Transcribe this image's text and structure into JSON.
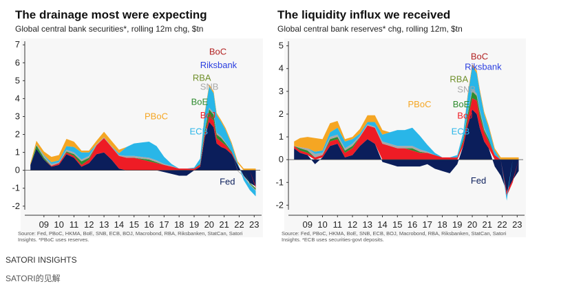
{
  "caption_primary": "SATORI INSIGHTS",
  "caption_secondary": "SATORI的见解",
  "colors": {
    "Fed": "#0b1e5b",
    "ECB": "#29b6e8",
    "BoJ": "#ee1c25",
    "BoE": "#2e8b2e",
    "SNB": "#a8a8a8",
    "RBA": "#6f8f2a",
    "Riksbank": "#2b3fe0",
    "BoC": "#b22222",
    "PBoC": "#f5a623",
    "Other": "#8fbc3f"
  },
  "chart_data": [
    {
      "type": "area",
      "title": "The drainage most were expecting",
      "subtitle": "Global central bank securities*, rolling 12m chg, $tn",
      "source": "Source: Fed, PBoC, HKMA, BoE, SNB, ECB, BOJ, Macrobond, RBA, Riksbanken, StatCan, Satori",
      "source2": "Insights. *PBoC uses reserves.",
      "ylim": [
        -2.2,
        7.2
      ],
      "yticks": [
        -2,
        -1,
        0,
        1,
        2,
        3,
        4,
        5,
        6,
        7
      ],
      "xlim": [
        2008.5,
        2023.9
      ],
      "xticks": [
        "09",
        "10",
        "11",
        "12",
        "13",
        "14",
        "15",
        "16",
        "17",
        "18",
        "19",
        "20",
        "21",
        "22",
        "23"
      ],
      "x": [
        2008.6,
        2009.0,
        2009.5,
        2010.0,
        2010.5,
        2011.0,
        2011.5,
        2012.0,
        2012.5,
        2013.0,
        2013.5,
        2014.0,
        2014.5,
        2015.0,
        2015.5,
        2016.0,
        2016.5,
        2017.0,
        2017.5,
        2018.0,
        2018.5,
        2019.0,
        2019.5,
        2019.9,
        2020.2,
        2020.5,
        2020.8,
        2021.0,
        2021.3,
        2021.6,
        2022.0,
        2022.4,
        2022.8,
        2023.2,
        2023.6
      ],
      "series": [
        {
          "name": "Fed",
          "values": [
            0.3,
            1.2,
            0.6,
            0.2,
            0.3,
            0.9,
            0.7,
            0.2,
            0.4,
            0.9,
            1.0,
            0.6,
            0.1,
            0.0,
            0.0,
            0.0,
            0.0,
            0.0,
            -0.1,
            -0.2,
            -0.3,
            -0.3,
            0.0,
            0.2,
            1.8,
            2.7,
            2.4,
            1.5,
            1.3,
            1.2,
            0.9,
            0.3,
            -0.3,
            -0.7,
            -0.9
          ]
        },
        {
          "name": "BoJ",
          "values": [
            0.0,
            0.0,
            0.0,
            0.05,
            0.1,
            0.1,
            0.1,
            0.1,
            0.2,
            0.5,
            0.8,
            0.7,
            0.7,
            0.7,
            0.7,
            0.6,
            0.5,
            0.4,
            0.3,
            0.2,
            0.1,
            0.1,
            0.1,
            0.1,
            0.2,
            0.3,
            0.4,
            0.3,
            0.3,
            0.2,
            0.1,
            0.0,
            0.0,
            0.0,
            -0.1
          ]
        },
        {
          "name": "BoE",
          "values": [
            0.0,
            0.2,
            0.1,
            0.0,
            0.0,
            0.05,
            0.1,
            0.2,
            0.1,
            0.0,
            0.0,
            0.0,
            0.0,
            0.0,
            0.0,
            0.05,
            0.1,
            0.05,
            0.0,
            0.0,
            0.0,
            0.0,
            0.0,
            0.05,
            0.2,
            0.4,
            0.3,
            0.2,
            0.2,
            0.1,
            0.05,
            0.0,
            0.0,
            -0.05,
            -0.1
          ]
        },
        {
          "name": "SNB",
          "values": [
            0.0,
            0.05,
            0.1,
            0.1,
            0.05,
            0.1,
            0.1,
            0.1,
            0.1,
            0.05,
            0.05,
            0.05,
            0.05,
            0.1,
            0.1,
            0.1,
            0.1,
            0.1,
            0.05,
            0.05,
            0.0,
            0.0,
            0.0,
            0.0,
            0.1,
            0.1,
            0.1,
            0.1,
            0.1,
            0.05,
            0.0,
            -0.05,
            -0.05,
            -0.05,
            -0.05
          ]
        },
        {
          "name": "ECB",
          "values": [
            0.0,
            0.0,
            0.05,
            0.1,
            0.1,
            0.2,
            0.3,
            0.4,
            0.2,
            0.0,
            0.0,
            0.0,
            0.1,
            0.5,
            0.7,
            0.8,
            0.9,
            0.8,
            0.4,
            0.1,
            0.0,
            0.0,
            0.05,
            0.3,
            0.8,
            1.2,
            1.1,
            1.0,
            0.8,
            0.7,
            0.4,
            0.1,
            -0.2,
            -0.3,
            -0.3
          ]
        },
        {
          "name": "PBoC",
          "values": [
            0.1,
            0.2,
            0.2,
            0.3,
            0.3,
            0.4,
            0.3,
            0.1,
            0.1,
            0.2,
            0.3,
            0.3,
            0.2,
            0.0,
            0.0,
            0.0,
            0.0,
            0.0,
            0.0,
            0.0,
            0.0,
            0.0,
            0.0,
            0.0,
            0.1,
            0.1,
            0.1,
            0.1,
            0.1,
            0.1,
            0.1,
            0.1,
            0.1,
            0.1,
            0.1
          ]
        }
      ],
      "annotations": [
        {
          "text": "BoC",
          "color": "#b22222",
          "x": 2020.5,
          "y": 6.45
        },
        {
          "text": "Riksbank",
          "color": "#2b3fe0",
          "x": 2019.9,
          "y": 5.7
        },
        {
          "text": "RBA",
          "color": "#6f8f2a",
          "x": 2019.4,
          "y": 5.0
        },
        {
          "text": "SNB",
          "color": "#a8a8a8",
          "x": 2019.9,
          "y": 4.5
        },
        {
          "text": "BoE",
          "color": "#2e8b2e",
          "x": 2019.3,
          "y": 3.65
        },
        {
          "text": "BoJ",
          "color": "#ee1c25",
          "x": 2019.9,
          "y": 2.9
        },
        {
          "text": "ECB",
          "color": "#29b6e8",
          "x": 2019.2,
          "y": 2.0
        },
        {
          "text": "PBoC",
          "color": "#f5a623",
          "x": 2016.2,
          "y": 2.85
        },
        {
          "text": "Fed",
          "color": "#0b1e5b",
          "x": 2021.2,
          "y": -0.8
        }
      ]
    },
    {
      "type": "area",
      "title": "The liquidity influx we received",
      "subtitle": "Global central bank reserves* chg, rolling 12m, $tn",
      "source": "Source: Fed, PBoC, HKMA, BoE, SNB, ECB, BOJ, Macrobond, RBA, Riksbanken, StatCan, Satori",
      "source2": "Insights. *ECB uses securities-govt deposits.",
      "ylim": [
        -2.2,
        5.2
      ],
      "yticks": [
        -2,
        -1,
        0,
        1,
        2,
        3,
        4,
        5
      ],
      "xlim": [
        2008.5,
        2023.9
      ],
      "xticks": [
        "09",
        "10",
        "11",
        "12",
        "13",
        "14",
        "15",
        "16",
        "17",
        "18",
        "19",
        "20",
        "21",
        "22",
        "23"
      ],
      "x": [
        2008.6,
        2009.0,
        2009.5,
        2010.0,
        2010.5,
        2011.0,
        2011.5,
        2012.0,
        2012.5,
        2013.0,
        2013.5,
        2014.0,
        2014.5,
        2015.0,
        2015.5,
        2016.0,
        2016.5,
        2017.0,
        2017.5,
        2018.0,
        2018.5,
        2019.0,
        2019.5,
        2019.9,
        2020.2,
        2020.5,
        2020.8,
        2021.0,
        2021.3,
        2021.6,
        2022.0,
        2022.4,
        2022.8,
        2023.2,
        2023.6
      ],
      "series": [
        {
          "name": "Fed",
          "values": [
            0.5,
            0.3,
            0.2,
            -0.2,
            0.1,
            0.6,
            0.7,
            0.1,
            0.2,
            0.6,
            0.9,
            0.7,
            -0.1,
            -0.2,
            -0.3,
            -0.3,
            -0.3,
            -0.3,
            -0.2,
            -0.4,
            -0.5,
            -0.6,
            -0.2,
            0.6,
            1.5,
            2.2,
            2.0,
            1.4,
            0.8,
            0.5,
            -0.3,
            -0.7,
            -1.4,
            -0.9,
            -0.5
          ]
        },
        {
          "name": "BoJ",
          "values": [
            0.1,
            0.1,
            0.1,
            0.1,
            0.1,
            0.2,
            0.2,
            0.2,
            0.3,
            0.4,
            0.6,
            0.7,
            0.7,
            0.6,
            0.5,
            0.5,
            0.4,
            0.3,
            0.3,
            0.2,
            0.1,
            0.1,
            0.1,
            0.2,
            0.3,
            0.5,
            0.6,
            0.5,
            0.4,
            0.3,
            0.2,
            0.0,
            -0.2,
            -0.1,
            0.0
          ]
        },
        {
          "name": "BoE",
          "values": [
            0.0,
            0.1,
            0.1,
            0.0,
            0.0,
            0.1,
            0.1,
            0.1,
            0.1,
            0.0,
            0.0,
            0.0,
            0.0,
            0.0,
            0.0,
            0.0,
            0.1,
            0.05,
            0.0,
            0.0,
            0.0,
            0.0,
            0.0,
            0.1,
            0.2,
            0.3,
            0.2,
            0.2,
            0.1,
            0.1,
            0.0,
            0.0,
            0.0,
            0.0,
            0.0
          ]
        },
        {
          "name": "SNB",
          "values": [
            0.0,
            0.05,
            0.1,
            0.15,
            0.1,
            0.1,
            0.1,
            0.1,
            0.1,
            0.05,
            0.05,
            0.05,
            0.1,
            0.1,
            0.1,
            0.1,
            0.1,
            0.1,
            0.05,
            0.0,
            0.0,
            0.0,
            0.0,
            0.0,
            0.1,
            0.1,
            0.1,
            0.1,
            0.1,
            0.0,
            0.0,
            0.0,
            0.0,
            0.0,
            0.0
          ]
        },
        {
          "name": "ECB",
          "values": [
            0.0,
            0.0,
            0.0,
            0.1,
            0.1,
            0.2,
            0.3,
            0.3,
            0.2,
            0.1,
            0.1,
            0.2,
            0.3,
            0.5,
            0.7,
            0.7,
            0.8,
            0.6,
            0.3,
            0.1,
            0.0,
            0.0,
            0.1,
            0.3,
            0.7,
            1.0,
            0.9,
            0.8,
            0.6,
            0.5,
            0.2,
            0.0,
            -0.2,
            0.0,
            0.0
          ]
        },
        {
          "name": "PBoC",
          "values": [
            0.2,
            0.4,
            0.5,
            0.6,
            0.5,
            0.4,
            0.3,
            0.1,
            0.1,
            0.2,
            0.3,
            0.3,
            0.2,
            0.0,
            0.0,
            0.0,
            0.0,
            0.0,
            0.0,
            0.0,
            0.0,
            0.0,
            0.0,
            0.0,
            0.1,
            0.1,
            0.1,
            0.1,
            0.1,
            0.1,
            0.1,
            0.1,
            0.1,
            0.1,
            0.1
          ]
        }
      ],
      "annotations": [
        {
          "text": "BoC",
          "color": "#b22222",
          "x": 2020.4,
          "y": 4.4
        },
        {
          "text": "Riksbank",
          "color": "#2b3fe0",
          "x": 2020.0,
          "y": 3.95
        },
        {
          "text": "RBA",
          "color": "#6f8f2a",
          "x": 2019.0,
          "y": 3.4
        },
        {
          "text": "SNB",
          "color": "#a8a8a8",
          "x": 2019.5,
          "y": 2.95
        },
        {
          "text": "BoE",
          "color": "#2e8b2e",
          "x": 2019.2,
          "y": 2.3
        },
        {
          "text": "BoJ",
          "color": "#ee1c25",
          "x": 2019.5,
          "y": 1.8
        },
        {
          "text": "ECB",
          "color": "#29b6e8",
          "x": 2019.1,
          "y": 1.1
        },
        {
          "text": "PBoC",
          "color": "#f5a623",
          "x": 2016.2,
          "y": 2.3
        },
        {
          "text": "Fed",
          "color": "#0b1e5b",
          "x": 2020.4,
          "y": -1.05
        }
      ]
    }
  ]
}
